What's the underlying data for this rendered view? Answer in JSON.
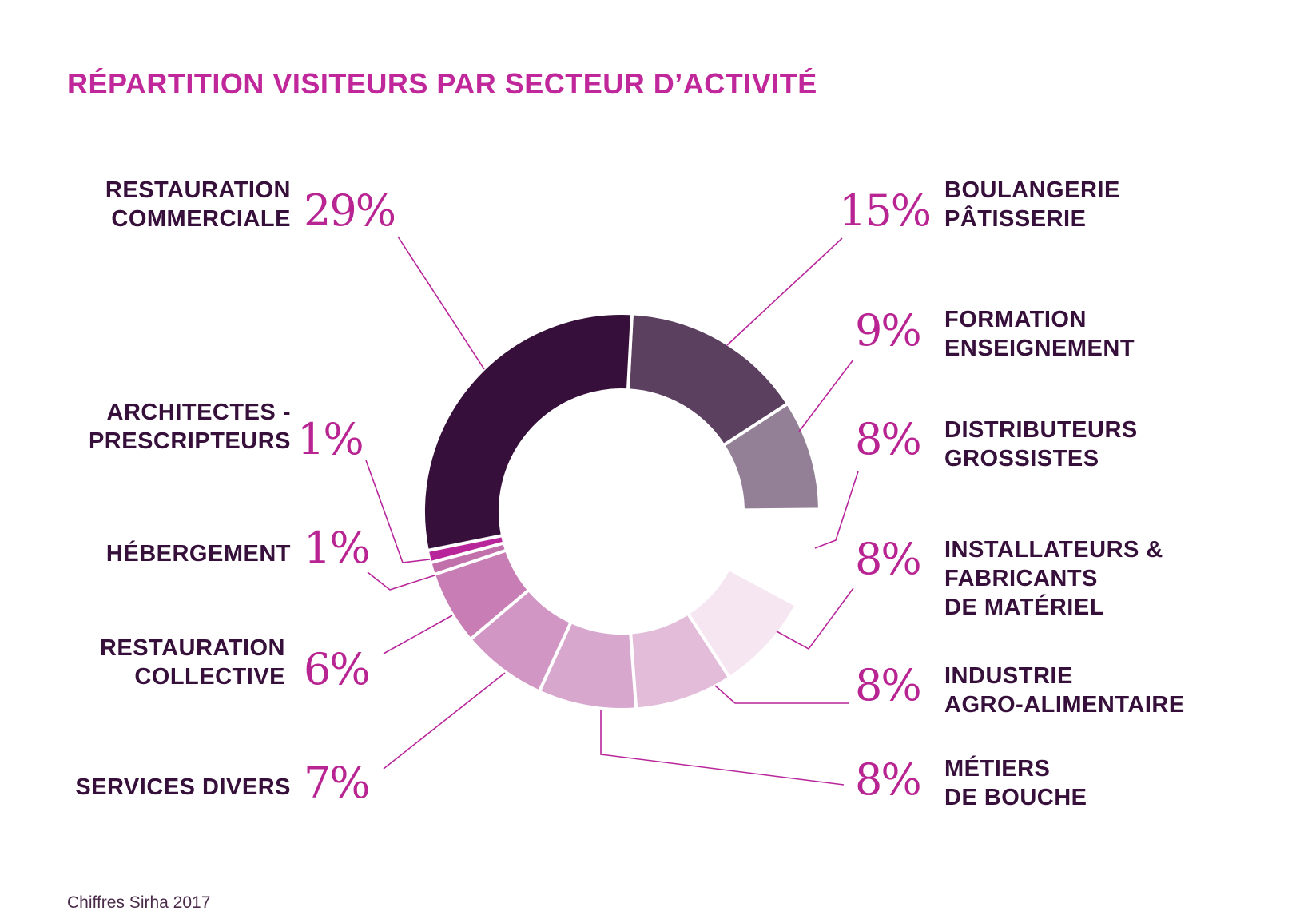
{
  "title": "RÉPARTITION VISITEURS PAR SECTEUR D’ACTIVITÉ",
  "source": "Chiffres Sirha 2017",
  "chart_data": {
    "type": "pie",
    "title": "RÉPARTITION VISITEURS PAR SECTEUR D’ACTIVITÉ",
    "donut": true,
    "slices": [
      {
        "label_lines": [
          "BOULANGERIE",
          "PÂTISSERIE"
        ],
        "value": 15,
        "pct_label": "15%",
        "color": "#5c4060",
        "visible": true
      },
      {
        "label_lines": [
          "FORMATION",
          "ENSEIGNEMENT"
        ],
        "value": 9,
        "pct_label": "9%",
        "color": "#937f96",
        "visible": true
      },
      {
        "label_lines": [
          "DISTRIBUTEURS",
          "GROSSISTES"
        ],
        "value": 8,
        "pct_label": "8%",
        "color": "#ffffff",
        "visible": false
      },
      {
        "label_lines": [
          "INSTALLATEURS &",
          "FABRICANTS",
          "DE MATÉRIEL"
        ],
        "value": 8,
        "pct_label": "8%",
        "color": "#f5e6f1",
        "visible": true
      },
      {
        "label_lines": [
          "INDUSTRIE",
          "AGRO-ALIMENTAIRE"
        ],
        "value": 8,
        "pct_label": "8%",
        "color": "#e2bcd9",
        "visible": true
      },
      {
        "label_lines": [
          "MÉTIERS",
          "DE BOUCHE"
        ],
        "value": 8,
        "pct_label": "8%",
        "color": "#d8a7cd",
        "visible": true
      },
      {
        "label_lines": [
          "SERVICES DIVERS"
        ],
        "value": 7,
        "pct_label": "7%",
        "color": "#d196c3",
        "visible": true
      },
      {
        "label_lines": [
          "RESTAURATION",
          "COLLECTIVE"
        ],
        "value": 6,
        "pct_label": "6%",
        "color": "#c87db5",
        "visible": true
      },
      {
        "label_lines": [
          "HÉBERGEMENT"
        ],
        "value": 1,
        "pct_label": "1%",
        "color": "#c170ac",
        "visible": true
      },
      {
        "label_lines": [
          "ARCHITECTES -",
          "PRESCRIPTEURS"
        ],
        "value": 1,
        "pct_label": "1%",
        "color": "#b8259a",
        "visible": true
      },
      {
        "label_lines": [
          "RESTAURATION",
          "COMMERCIALE"
        ],
        "value": 29,
        "pct_label": "29%",
        "color": "#36103a",
        "visible": true
      }
    ]
  }
}
